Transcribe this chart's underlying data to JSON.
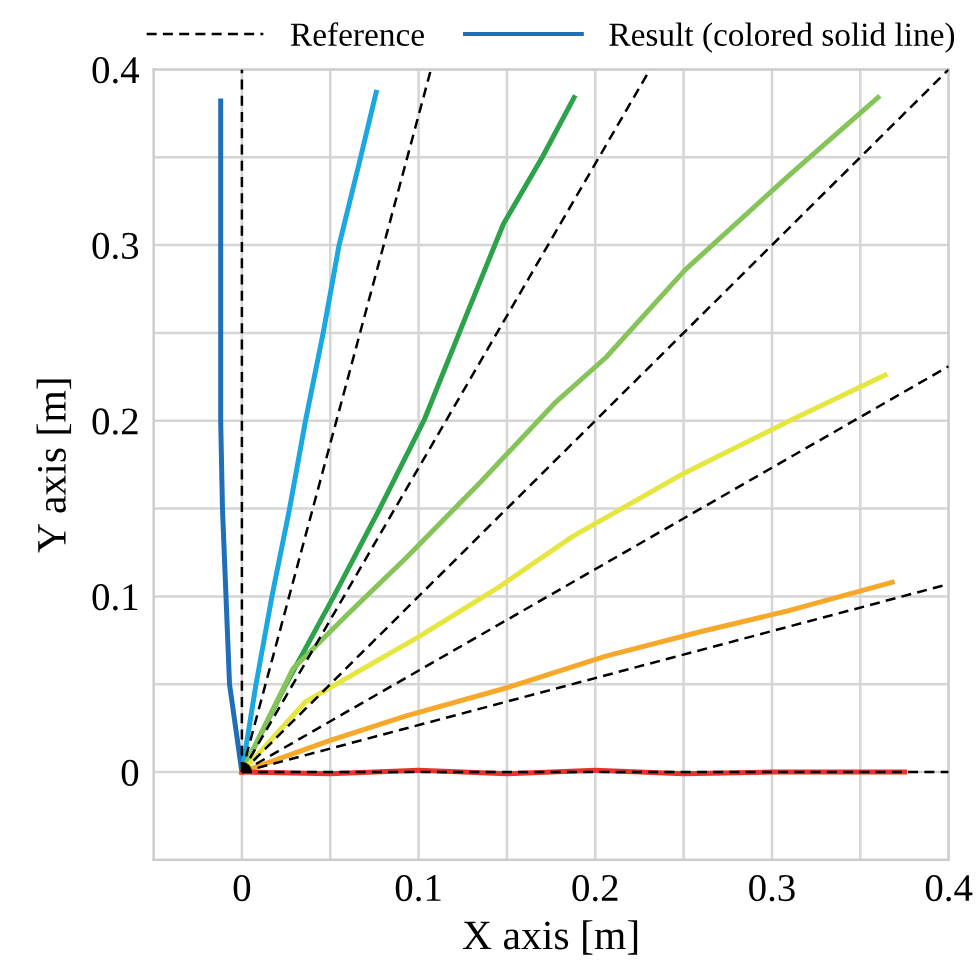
{
  "chart_data": {
    "type": "line",
    "xlabel": "X axis [m]",
    "ylabel": "Y axis [m]",
    "xlim": [
      -0.05,
      0.4
    ],
    "ylim": [
      -0.05,
      0.4
    ],
    "xticks": [
      {
        "value": -0.05,
        "label": null
      },
      0,
      {
        "value": 0.05,
        "label": null
      },
      0.1,
      {
        "value": 0.15,
        "label": null
      },
      0.2,
      {
        "value": 0.25,
        "label": null
      },
      0.3,
      {
        "value": 0.35,
        "label": null
      },
      0.4
    ],
    "yticks": [
      {
        "value": -0.05,
        "label": null
      },
      0,
      {
        "value": 0.05,
        "label": null
      },
      0.1,
      {
        "value": 0.15,
        "label": null
      },
      0.2,
      {
        "value": 0.25,
        "label": null
      },
      0.3,
      {
        "value": 0.35,
        "label": null
      },
      0.4
    ],
    "grid": true,
    "legend": "top",
    "series": [
      {
        "name": "Reference",
        "color": "#000000",
        "line_style": "dashed",
        "x": [
          0,
          0
        ],
        "values": [
          0,
          0.4
        ]
      },
      {
        "color": "#000000",
        "line_style": "dashed",
        "x": [
          0,
          0.107
        ],
        "values": [
          0,
          0.4
        ]
      },
      {
        "color": "#000000",
        "line_style": "dashed",
        "x": [
          0,
          0.231
        ],
        "values": [
          0,
          0.4
        ]
      },
      {
        "color": "#000000",
        "line_style": "dashed",
        "x": [
          0,
          0.4
        ],
        "values": [
          0,
          0.4
        ]
      },
      {
        "color": "#000000",
        "line_style": "dashed",
        "x": [
          0,
          0.4
        ],
        "values": [
          0,
          0.231
        ]
      },
      {
        "color": "#000000",
        "line_style": "dashed",
        "x": [
          0,
          0.4
        ],
        "values": [
          0,
          0.107
        ]
      },
      {
        "color": "#000000",
        "line_style": "dashed",
        "x": [
          0,
          0.4
        ],
        "values": [
          0,
          0
        ]
      },
      {
        "name": "Result (colored solid line)",
        "color": "#1f6fb8",
        "line_style": "solid",
        "x": [
          0,
          -0.007,
          -0.009,
          -0.011,
          -0.012,
          -0.012,
          -0.012
        ],
        "values": [
          0,
          0.05,
          0.1,
          0.15,
          0.2,
          0.3,
          0.382
        ]
      },
      {
        "color": "#1ba7e0",
        "line_style": "solid",
        "x": [
          0,
          0.008,
          0.017,
          0.027,
          0.036,
          0.046,
          0.055,
          0.066,
          0.076
        ],
        "values": [
          0,
          0.05,
          0.1,
          0.15,
          0.2,
          0.25,
          0.3,
          0.345,
          0.387
        ]
      },
      {
        "color": "#2ca24a",
        "line_style": "solid",
        "x": [
          0,
          0.025,
          0.052,
          0.078,
          0.103,
          0.127,
          0.148,
          0.17,
          0.188
        ],
        "values": [
          0,
          0.05,
          0.1,
          0.15,
          0.2,
          0.26,
          0.312,
          0.35,
          0.384
        ]
      },
      {
        "color": "#86c45a",
        "line_style": "solid",
        "x": [
          0,
          0.029,
          0.06,
          0.093,
          0.135,
          0.177,
          0.206,
          0.251,
          0.31,
          0.36
        ],
        "values": [
          0,
          0.059,
          0.09,
          0.122,
          0.165,
          0.21,
          0.236,
          0.286,
          0.34,
          0.384
        ]
      },
      {
        "color": "#e6e640",
        "line_style": "solid",
        "x": [
          0,
          0.036,
          0.1,
          0.145,
          0.187,
          0.25,
          0.31,
          0.364
        ],
        "values": [
          0,
          0.04,
          0.077,
          0.105,
          0.134,
          0.17,
          0.2,
          0.226
        ]
      },
      {
        "color": "#f5a82a",
        "line_style": "solid",
        "x": [
          0,
          0.05,
          0.093,
          0.15,
          0.206,
          0.26,
          0.31,
          0.368
        ],
        "values": [
          0,
          0.018,
          0.032,
          0.048,
          0.066,
          0.08,
          0.092,
          0.108
        ]
      },
      {
        "color": "#e8322a",
        "line_style": "solid",
        "x": [
          0,
          0.05,
          0.1,
          0.15,
          0.2,
          0.25,
          0.3,
          0.375
        ],
        "values": [
          0,
          -0.001,
          0.001,
          -0.001,
          0.001,
          -0.001,
          0,
          0
        ]
      }
    ]
  }
}
